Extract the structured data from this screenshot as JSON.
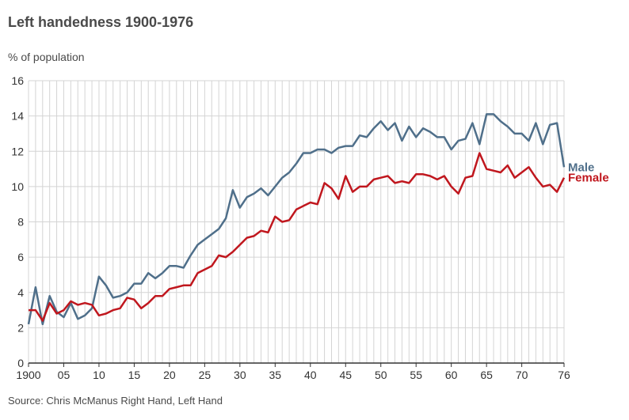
{
  "chart_data": {
    "type": "line",
    "title": "Left handedness 1900-1976",
    "ylabel": "% of population",
    "source": "Source: Chris McManus Right Hand, Left Hand",
    "x": [
      1900,
      1901,
      1902,
      1903,
      1904,
      1905,
      1906,
      1907,
      1908,
      1909,
      1910,
      1911,
      1912,
      1913,
      1914,
      1915,
      1916,
      1917,
      1918,
      1919,
      1920,
      1921,
      1922,
      1923,
      1924,
      1925,
      1926,
      1927,
      1928,
      1929,
      1930,
      1931,
      1932,
      1933,
      1934,
      1935,
      1936,
      1937,
      1938,
      1939,
      1940,
      1941,
      1942,
      1943,
      1944,
      1945,
      1946,
      1947,
      1948,
      1949,
      1950,
      1951,
      1952,
      1953,
      1954,
      1955,
      1956,
      1957,
      1958,
      1959,
      1960,
      1961,
      1962,
      1963,
      1964,
      1965,
      1966,
      1967,
      1968,
      1969,
      1970,
      1971,
      1972,
      1973,
      1974,
      1975,
      1976
    ],
    "ylim": [
      0,
      16
    ],
    "yticks": [
      0,
      2,
      4,
      6,
      8,
      10,
      12,
      14,
      16
    ],
    "xtick_values": [
      1900,
      1905,
      1910,
      1915,
      1920,
      1925,
      1930,
      1935,
      1940,
      1945,
      1950,
      1955,
      1960,
      1965,
      1970,
      1976
    ],
    "xtick_labels": [
      "1900",
      "05",
      "10",
      "15",
      "20",
      "25",
      "30",
      "35",
      "40",
      "45",
      "50",
      "55",
      "60",
      "65",
      "70",
      "76"
    ],
    "grid": true,
    "series": [
      {
        "name": "Male",
        "color": "#4f6f8a",
        "values": [
          2.2,
          4.3,
          2.2,
          3.8,
          2.9,
          2.6,
          3.4,
          2.5,
          2.7,
          3.1,
          4.9,
          4.4,
          3.7,
          3.8,
          4.0,
          4.5,
          4.5,
          5.1,
          4.8,
          5.1,
          5.5,
          5.5,
          5.4,
          6.1,
          6.7,
          7.0,
          7.3,
          7.6,
          8.2,
          9.8,
          8.8,
          9.4,
          9.6,
          9.9,
          9.5,
          10.0,
          10.5,
          10.8,
          11.3,
          11.9,
          11.9,
          12.1,
          12.1,
          11.9,
          12.2,
          12.3,
          12.3,
          12.9,
          12.8,
          13.3,
          13.7,
          13.2,
          13.6,
          12.6,
          13.4,
          12.8,
          13.3,
          13.1,
          12.8,
          12.8,
          12.1,
          12.6,
          12.7,
          13.6,
          12.4,
          14.1,
          14.1,
          13.7,
          13.4,
          13.0,
          13.0,
          12.6,
          13.6,
          12.4,
          13.5,
          13.6,
          11.1
        ]
      },
      {
        "name": "Female",
        "color": "#c0171e",
        "values": [
          3.0,
          3.0,
          2.4,
          3.4,
          2.8,
          3.0,
          3.5,
          3.3,
          3.4,
          3.3,
          2.7,
          2.8,
          3.0,
          3.1,
          3.7,
          3.6,
          3.1,
          3.4,
          3.8,
          3.8,
          4.2,
          4.3,
          4.4,
          4.4,
          5.1,
          5.3,
          5.5,
          6.1,
          6.0,
          6.3,
          6.7,
          7.1,
          7.2,
          7.5,
          7.4,
          8.3,
          8.0,
          8.1,
          8.7,
          8.9,
          9.1,
          9.0,
          10.2,
          9.9,
          9.3,
          10.6,
          9.7,
          10.0,
          10.0,
          10.4,
          10.5,
          10.6,
          10.2,
          10.3,
          10.2,
          10.7,
          10.7,
          10.6,
          10.4,
          10.6,
          10.0,
          9.6,
          10.5,
          10.6,
          11.9,
          11.0,
          10.9,
          10.8,
          11.2,
          10.5,
          10.8,
          11.1,
          10.5,
          10.0,
          10.1,
          9.7,
          10.5
        ]
      }
    ]
  }
}
